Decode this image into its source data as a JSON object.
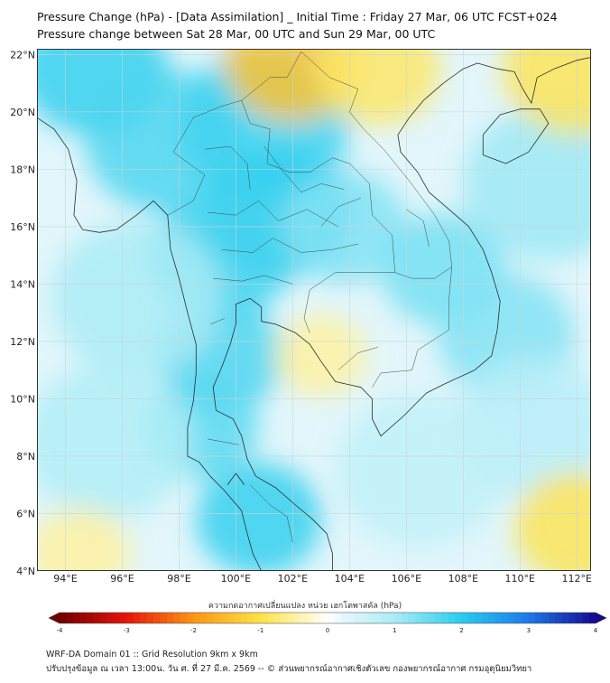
{
  "header": {
    "title_line1": "Pressure Change (hPa) - [Data Assimilation] _ Initial Time : Friday 27 Mar, 06 UTC FCST+024",
    "title_line2": "Pressure change between Sat 28 Mar, 00 UTC and Sun 29 Mar, 00 UTC"
  },
  "map": {
    "lon_range": [
      93,
      112.5
    ],
    "lat_range": [
      4,
      22.2
    ],
    "lon_ticks": [
      {
        "value": 94,
        "label": "94°E"
      },
      {
        "value": 96,
        "label": "96°E"
      },
      {
        "value": 98,
        "label": "98°E"
      },
      {
        "value": 100,
        "label": "100°E"
      },
      {
        "value": 102,
        "label": "102°E"
      },
      {
        "value": 104,
        "label": "104°E"
      },
      {
        "value": 106,
        "label": "106°E"
      },
      {
        "value": 108,
        "label": "108°E"
      },
      {
        "value": 110,
        "label": "110°E"
      },
      {
        "value": 112,
        "label": "112°E"
      }
    ],
    "lat_ticks": [
      {
        "value": 22,
        "label": "22°N"
      },
      {
        "value": 20,
        "label": "20°N"
      },
      {
        "value": 18,
        "label": "18°N"
      },
      {
        "value": 16,
        "label": "16°N"
      },
      {
        "value": 14,
        "label": "14°N"
      },
      {
        "value": 12,
        "label": "12°N"
      },
      {
        "value": 10,
        "label": "10°N"
      },
      {
        "value": 8,
        "label": "8°N"
      },
      {
        "value": 6,
        "label": "6°N"
      },
      {
        "value": 4,
        "label": "4°N"
      }
    ],
    "field": [
      {
        "lon": 95.0,
        "lat": 21.5,
        "value": 1.9,
        "radius": 2.6
      },
      {
        "lon": 97.5,
        "lat": 19.0,
        "value": 1.7,
        "radius": 2.8
      },
      {
        "lon": 101.0,
        "lat": 19.5,
        "value": 1.8,
        "radius": 3.0
      },
      {
        "lon": 101.5,
        "lat": 16.5,
        "value": 1.9,
        "radius": 2.6
      },
      {
        "lon": 99.5,
        "lat": 15.0,
        "value": 1.8,
        "radius": 2.5
      },
      {
        "lon": 103.8,
        "lat": 16.0,
        "value": 1.3,
        "radius": 2.2
      },
      {
        "lon": 99.5,
        "lat": 11.5,
        "value": 1.7,
        "radius": 2.2
      },
      {
        "lon": 98.8,
        "lat": 9.0,
        "value": 1.6,
        "radius": 2.0
      },
      {
        "lon": 100.8,
        "lat": 5.8,
        "value": 1.9,
        "radius": 2.2
      },
      {
        "lon": 96.5,
        "lat": 13.5,
        "value": 1.0,
        "radius": 3.0
      },
      {
        "lon": 95.5,
        "lat": 8.5,
        "value": 0.9,
        "radius": 3.0
      },
      {
        "lon": 107.3,
        "lat": 14.5,
        "value": 1.4,
        "radius": 2.2
      },
      {
        "lon": 109.5,
        "lat": 12.2,
        "value": 1.3,
        "radius": 2.4
      },
      {
        "lon": 111.0,
        "lat": 17.5,
        "value": 1.1,
        "radius": 3.0
      },
      {
        "lon": 110.5,
        "lat": 9.0,
        "value": 0.8,
        "radius": 2.8
      },
      {
        "lon": 106.5,
        "lat": 7.5,
        "value": 0.7,
        "radius": 3.0
      },
      {
        "lon": 103.0,
        "lat": 11.5,
        "value": -0.5,
        "radius": 1.6
      },
      {
        "lon": 102.0,
        "lat": 21.8,
        "value": -1.4,
        "radius": 2.4
      },
      {
        "lon": 105.0,
        "lat": 21.5,
        "value": -0.8,
        "radius": 2.2
      },
      {
        "lon": 112.0,
        "lat": 21.5,
        "value": -0.9,
        "radius": 2.6
      },
      {
        "lon": 112.0,
        "lat": 5.5,
        "value": -0.9,
        "radius": 2.2
      },
      {
        "lon": 94.5,
        "lat": 4.6,
        "value": -0.5,
        "radius": 1.8
      }
    ]
  },
  "colorbar": {
    "title": "ความกดอากาศเปลี่ยนแปลง หน่วย เฮกโตพาสคัล (hPa)",
    "min": -4,
    "max": 4,
    "tick_labels": [
      "-4",
      "-3",
      "-2",
      "-1",
      "0",
      "1",
      "2",
      "3",
      "4"
    ]
  },
  "footer": {
    "line1": "WRF-DA Domain 01 :: Grid Resolution 9km x 9km",
    "line2": "ปรับปรุงข้อมูล ณ เวลา 13:00น. วัน ศ. ที่ 27 มี.ค. 2569 -- © ส่วนพยากรณ์อากาศเชิงตัวเลข กองพยากรณ์อากาศ กรมอุตุนิยมวิทยา"
  }
}
